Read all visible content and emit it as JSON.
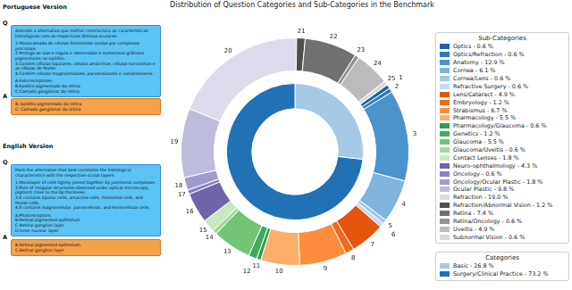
{
  "chart_data": {
    "type": "doughnut",
    "title": "Distribution of Question Categories and Sub-Categories in the Benchmark",
    "legend": "right",
    "data_labels": false,
    "rings": [
      {
        "name": "Sub-Categories",
        "ids": [
          1,
          2,
          3,
          4,
          5,
          6,
          7,
          8,
          9,
          10,
          11,
          12,
          13,
          14,
          15,
          16,
          17,
          18,
          19,
          20,
          21,
          22,
          23,
          24,
          25
        ],
        "categories": [
          "Optics",
          "Optics/Refraction",
          "Anatomy",
          "Cornea",
          "Cornea/Lens",
          "Refractive Surgery",
          "Lens/Cataract",
          "Embryology",
          "Strabismus",
          "Pharmacology",
          "Pharmacology/Glaucoma",
          "Genetics",
          "Glaucoma",
          "Glaucoma/Uveitis",
          "Contact Lenses",
          "Neuro-ophthalmology",
          "Oncology",
          "Oncology/Ocular Plastic",
          "Ocular Plastic",
          "Refraction",
          "Refraction/Abnormal Vision",
          "Retina",
          "Retina/Oncology",
          "Uveitis",
          "Subnormal Vision"
        ],
        "values": [
          0.6,
          0.6,
          12.9,
          6.1,
          0.6,
          0.6,
          4.9,
          1.2,
          6.7,
          5.5,
          0.6,
          1.2,
          5.5,
          0.6,
          1.8,
          4.3,
          0.6,
          1.8,
          9.8,
          19.0,
          1.2,
          7.4,
          0.6,
          4.9,
          0.6
        ],
        "legend_entries": [
          "Optics - 0.6 %",
          "Optics/Refraction - 0.6 %",
          "Anatomy - 12.9 %",
          "Cornea - 6.1 %",
          "Cornea/Lens - 0.6 %",
          "Refractive Surgery - 0.6 %",
          "Lens/Cataract - 4.9 %",
          "Embryology - 1.2 %",
          "Strabismus - 6.7 %",
          "Pharmacology - 5.5 %",
          "Pharmacology/Glaucoma - 0.6 %",
          "Genetics - 1.2 %",
          "Glaucoma - 5.5 %",
          "Glaucoma/Uveitis - 0.6 %",
          "Contact Lenses - 1.8 %",
          "Neuro-ophthalmology - 4.3 %",
          "Oncology - 0.6 %",
          "Oncology/Ocular Plastic - 1.8 %",
          "Ocular Plastic - 9.8 %",
          "Refraction - 19.0 %",
          "Refraction/Abnormal Vision - 1.2 %",
          "Retina - 7.4 %",
          "Retina/Oncology - 0.6 %",
          "Uveitis - 4.9 %",
          "Subnormal Vision - 0.6 %"
        ],
        "colors": [
          "#1f63a8",
          "#2d7bbd",
          "#4a93cb",
          "#7fb4dc",
          "#a3c9e7",
          "#c4dcef",
          "#e6550d",
          "#f06a18",
          "#fd8d3c",
          "#fdae6b",
          "#2e9e4f",
          "#41ab5d",
          "#74c476",
          "#a1d99b",
          "#c7e9c0",
          "#6f65ad",
          "#8a83c0",
          "#a09cca",
          "#bdbcdc",
          "#dcdbec",
          "#4f4f4f",
          "#717171",
          "#949494",
          "#bbbbbb",
          "#d9d9d9"
        ]
      },
      {
        "name": "Categories",
        "categories": [
          "Basic",
          "Surgery/Clinical Practice"
        ],
        "values": [
          26.8,
          73.2
        ],
        "legend_entries": [
          "Basic - 26.8 %",
          "Surgery/Clinical Practice - 73.2 %"
        ],
        "colors": [
          "#a4cae6",
          "#2271b5"
        ]
      }
    ]
  },
  "panels": [
    {
      "title": "Portuguese Version",
      "question_marker": "Q",
      "question": [
        "Assinale a alternativa que melhor correlaciona as características histológicas com as respectivas lâminas oculares:",
        "",
        "1.Monocamada de células fortemente unidas por complexos juncionais",
        "2.Protege as vias e regula e observadas e numerosos grânulos pigmentares no epitélio.",
        "3.Contém células bipolares, células amácrinas, células horizontais e as células de Muller.",
        "4.Contém células magnocelulares, parvocelulares e coniocelulares.",
        "",
        "A.Fotorreceptores.",
        "B.Epitélio pigmentado da retina",
        "C.Camada ganglionar da retina"
      ],
      "answer_marker": "A",
      "answer": [
        "B. Epitélio pigmentado da retina",
        "C. Camada ganglionar da retina"
      ]
    },
    {
      "title": "English Version",
      "question_marker": "Q",
      "question": [
        "Mark the alternative that best correlates the histological characteristics with the respective ocular layers.",
        "",
        "1.Monolayer of cells tightly joined together by junctional complexes.",
        "2.Pure of irregular structures observed under optical microscopy, pigment close to the lip thickness.",
        "3.It contains bipolar cells, amacrine cells, horizontal cells, and Muller cells.",
        "4.It contains magnocellular, parvocellular, and koniocellular cells.",
        "",
        "A.Photoreceptors.",
        "B.Retinal pigmented epithelium",
        "C.Retinal ganglion layer",
        "D.Inner nuclear layer"
      ],
      "answer_marker": "A",
      "answer": [
        "B.Retinal pigmented epithelium.",
        "C.Retinal ganglion layer"
      ]
    }
  ]
}
